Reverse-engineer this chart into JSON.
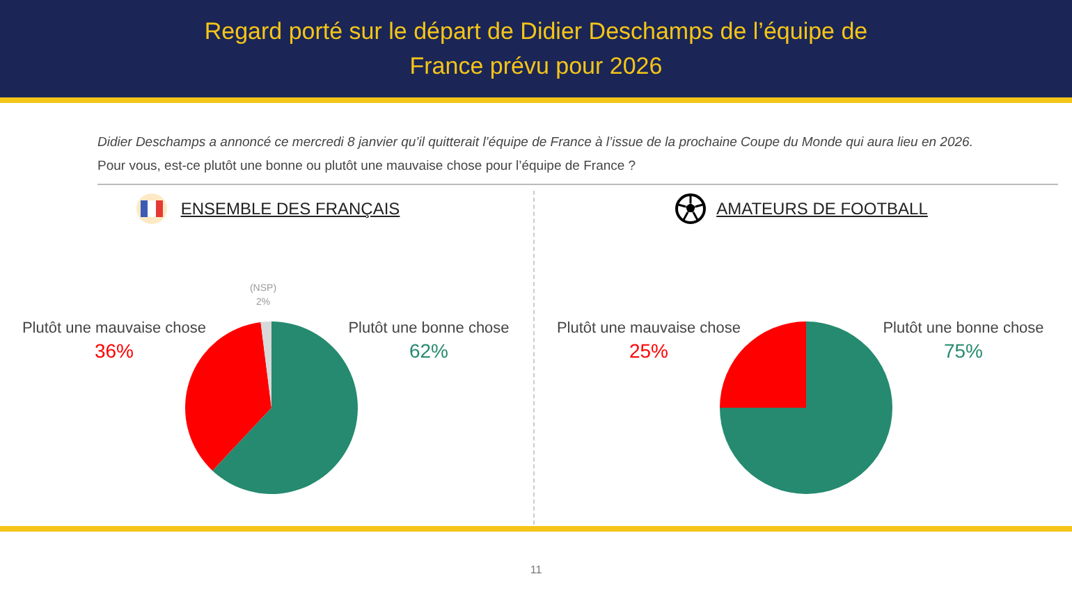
{
  "chart_data": [
    {
      "type": "pie",
      "title": "Regard porté sur le départ de Didier Deschamps de l’équipe de France prévu pour 2026",
      "subtitle": "ENSEMBLE DES FRANÇAIS",
      "annotations": [
        "Didier Deschamps a annoncé ce mercredi 8 janvier qu’il quitterait l’équipe de France à l’issue de la prochaine Coupe du Monde qui aura lieu en 2026.",
        "Pour vous, est-ce plutôt une bonne ou plutôt une mauvaise chose pour l’équipe de France ?",
        "11"
      ],
      "categories": [
        "Plutôt une bonne chose",
        "Plutôt une mauvaise chose",
        "(NSP)"
      ],
      "values": [
        62,
        36,
        2
      ],
      "value_labels": [
        "62%",
        "36%",
        "2%"
      ],
      "colors": [
        "#258a6f",
        "#ff0000",
        "#d9d9d9"
      ],
      "legend": false
    },
    {
      "type": "pie",
      "subtitle": "AMATEURS DE FOOTBALL",
      "categories": [
        "Plutôt une bonne chose",
        "Plutôt une mauvaise chose"
      ],
      "values": [
        75,
        25
      ],
      "value_labels": [
        "75%",
        "25%"
      ],
      "colors": [
        "#258a6f",
        "#ff0000"
      ],
      "legend": false
    }
  ]
}
